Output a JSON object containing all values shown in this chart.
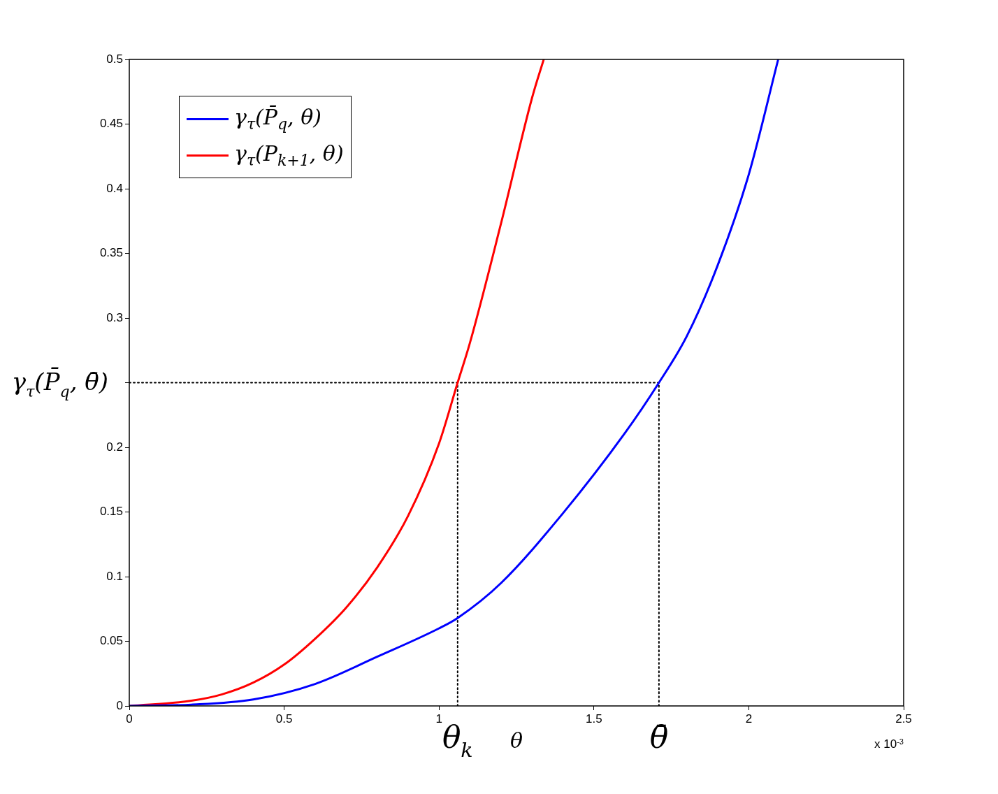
{
  "chart_data": {
    "type": "line",
    "xlabel": "θ",
    "marker": "none",
    "grid": false,
    "legend": "top left",
    "line_style": "solid",
    "xlim": [
      0,
      2.5
    ],
    "ylim": [
      0,
      0.5
    ],
    "xticks": [
      0,
      0.5,
      1,
      1.5,
      2,
      2.5
    ],
    "yticks": [
      0,
      0.05,
      0.1,
      0.15,
      0.2,
      {
        "value": 0.25,
        "label": null
      },
      0.3,
      0.35,
      0.4,
      0.45,
      0.5
    ],
    "series": [
      {
        "name": "γ$_{τ}$(P̄$_{q}$, θ)",
        "color": "#0000ff",
        "x": [
          0,
          0.2,
          0.4,
          0.6,
          0.8,
          1,
          1.06,
          1.2,
          1.4,
          1.6,
          1.71,
          1.8,
          1.9,
          2,
          2.095
        ],
        "values": [
          0,
          0.001,
          0.005,
          0.017,
          0.038,
          0.06,
          0.068,
          0.095,
          0.149,
          0.211,
          0.25,
          0.286,
          0.341,
          0.411,
          0.5
        ]
      },
      {
        "name": "γ$_{τ}$(P$_{k+1}$, θ)",
        "color": "#ff0000",
        "x": [
          0,
          0.2,
          0.3,
          0.4,
          0.5,
          0.6,
          0.7,
          0.8,
          0.9,
          1,
          1.06,
          1.1,
          1.2,
          1.3,
          1.338
        ],
        "values": [
          0,
          0.004,
          0.009,
          0.018,
          0.032,
          0.052,
          0.076,
          0.107,
          0.147,
          0.203,
          0.25,
          0.281,
          0.373,
          0.47,
          0.5
        ]
      },
      {
        "color": "#000000",
        "line_style": "dotted",
        "x": [
          0,
          1.71
        ],
        "values": [
          0.25,
          0.25
        ]
      },
      {
        "color": "#000000",
        "line_style": "dotted",
        "x": [
          1.06,
          1.06
        ],
        "values": [
          0,
          0.25
        ]
      },
      {
        "color": "#000000",
        "line_style": "dotted",
        "x": [
          1.71,
          1.71
        ],
        "values": [
          0,
          0.25
        ]
      }
    ],
    "annotations": [
      {
        "text": "γ$_{τ}$(P̄$_{q}$, θ̄)",
        "x": 0,
        "y": 0.25
      },
      {
        "text": "θ$_{k}$",
        "x": 1.06,
        "y": 0
      },
      {
        "text": "θ̄",
        "x": 1.71,
        "y": 0
      },
      "x 10$^{-3}$"
    ]
  }
}
